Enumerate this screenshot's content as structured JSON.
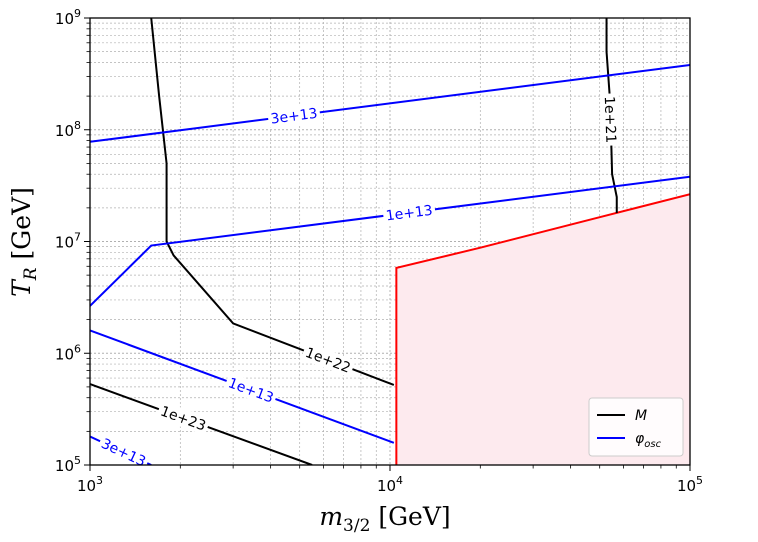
{
  "chart_data": {
    "type": "line",
    "xlabel": "m_{3/2} [GeV]",
    "ylabel": "T_R [GeV]",
    "xscale": "log",
    "yscale": "log",
    "xlim": [
      1000,
      100000
    ],
    "ylim": [
      100000,
      1000000000
    ],
    "grid": true,
    "legend_placement": "bottom-right",
    "x_tick_labels": [
      "10^3",
      "10^4",
      "10^5"
    ],
    "y_tick_labels": [
      "10^5",
      "10^6",
      "10^7",
      "10^8",
      "10^9"
    ],
    "colors": {
      "M": "#000000",
      "phi": "#0000ff",
      "region": "#ff0000",
      "region_fill": "#fdeaee"
    },
    "legend": [
      {
        "key": "M",
        "label": "M",
        "color": "#000000"
      },
      {
        "key": "phi",
        "label": "φ_osc",
        "color": "#0000ff"
      }
    ],
    "series": [
      {
        "name": "M",
        "contour_label": "1e+21",
        "color": "#000000",
        "x": [
          52700,
          52700,
          54000,
          54500,
          55000,
          57000,
          57000
        ],
        "y": [
          1000000000,
          500000000,
          200000000,
          100000000,
          40000000,
          25000000,
          18000000
        ]
      },
      {
        "name": "M",
        "contour_label": "1e+22",
        "color": "#000000",
        "x": [
          1600,
          1700,
          1800,
          1800,
          1900,
          3000,
          10300
        ],
        "y": [
          1000000000,
          200000000,
          50000000,
          10000000,
          7500000,
          1850000,
          520000
        ]
      },
      {
        "name": "M",
        "contour_label": "1e+23",
        "color": "#000000",
        "x": [
          1000,
          5500
        ],
        "y": [
          530000,
          100000
        ]
      },
      {
        "name": "φ_osc",
        "contour_label": "3e+13",
        "color": "#0000ff",
        "x": [
          1000,
          100000
        ],
        "y": [
          78000000,
          380000000
        ]
      },
      {
        "name": "φ_osc",
        "contour_label": "1e+13",
        "color": "#0000ff",
        "x": [
          1000,
          1600,
          100000
        ],
        "y": [
          2650000,
          9200000,
          38000000
        ]
      },
      {
        "name": "φ_osc",
        "contour_label": "1e+13",
        "color": "#0000ff",
        "x": [
          1000,
          10300
        ],
        "y": [
          1600000,
          158000
        ]
      },
      {
        "name": "φ_osc",
        "contour_label": "3e+13",
        "color": "#0000ff",
        "x": [
          1000,
          1600
        ],
        "y": [
          180000,
          100000
        ]
      }
    ],
    "excluded_region": {
      "color": "#ff0000",
      "boundary_x": [
        10500,
        10500,
        20000,
        50000,
        100000
      ],
      "boundary_y": [
        100000,
        5800000,
        8800000,
        16500000,
        26500000
      ]
    }
  }
}
